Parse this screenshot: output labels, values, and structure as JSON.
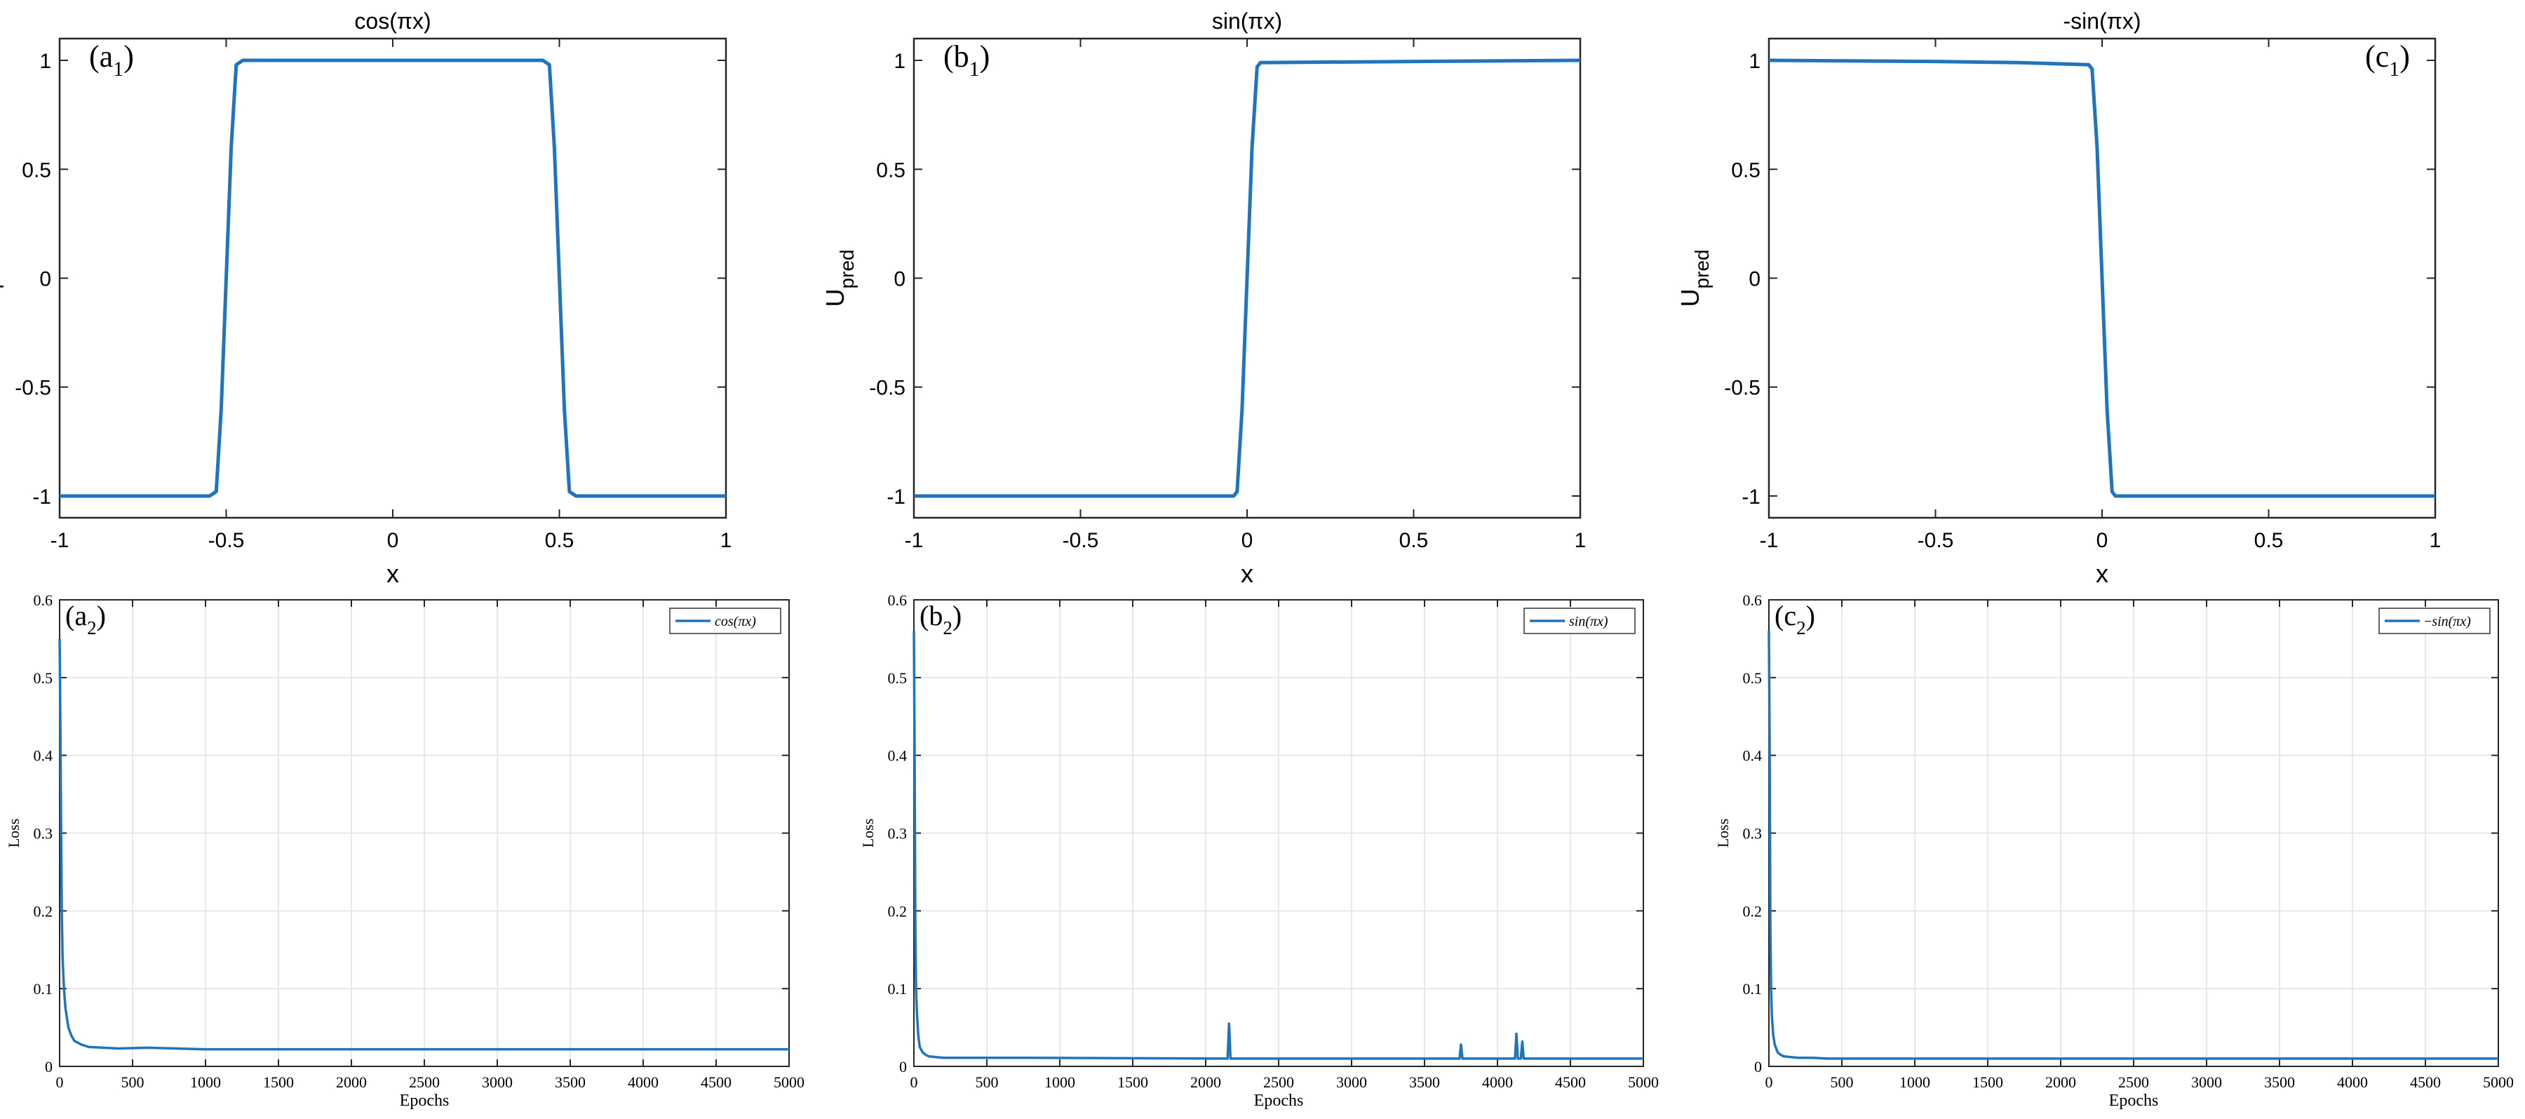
{
  "figure": {
    "colors": {
      "line": "#1f74bc",
      "axis": "#262626",
      "grid": "#e1e1e1",
      "legend_border": "#333333"
    }
  },
  "chart_data": [
    {
      "id": "a1",
      "type": "line",
      "title": "cos(πx)",
      "xlabel": "x",
      "ylabel": "U",
      "ylabel_sub": "pred",
      "panel_label": "(a",
      "panel_label_sub": "1",
      "panel_label_close": ")",
      "xlim": [
        -1,
        1
      ],
      "ylim": [
        -1.1,
        1.1
      ],
      "xticks": [
        -1,
        -0.5,
        0,
        0.5,
        1
      ],
      "yticks": [
        -1,
        -0.5,
        0,
        0.5,
        1
      ],
      "xtick_labels": [
        "-1",
        "-0.5",
        "0",
        "0.5",
        "1"
      ],
      "ytick_labels": [
        "-1",
        "-0.5",
        "0",
        "0.5",
        "1"
      ],
      "grid": false,
      "series": [
        {
          "x": [
            -1,
            -0.55,
            -0.53,
            -0.515,
            -0.5,
            -0.485,
            -0.47,
            -0.45,
            0.45,
            0.47,
            0.485,
            0.5,
            0.515,
            0.53,
            0.55,
            1
          ],
          "y": [
            -1,
            -1,
            -0.98,
            -0.6,
            0,
            0.6,
            0.98,
            1,
            1,
            0.98,
            0.6,
            0,
            -0.6,
            -0.98,
            -1,
            -1
          ]
        }
      ]
    },
    {
      "id": "b1",
      "type": "line",
      "title": "sin(πx)",
      "xlabel": "x",
      "ylabel": "U",
      "ylabel_sub": "pred",
      "panel_label": "(b",
      "panel_label_sub": "1",
      "panel_label_close": ")",
      "xlim": [
        -1,
        1
      ],
      "ylim": [
        -1.1,
        1.1
      ],
      "xticks": [
        -1,
        -0.5,
        0,
        0.5,
        1
      ],
      "yticks": [
        -1,
        -0.5,
        0,
        0.5,
        1
      ],
      "xtick_labels": [
        "-1",
        "-0.5",
        "0",
        "0.5",
        "1"
      ],
      "ytick_labels": [
        "-1",
        "-0.5",
        "0",
        "0.5",
        "1"
      ],
      "grid": false,
      "series": [
        {
          "x": [
            -1,
            -0.04,
            -0.03,
            -0.015,
            0,
            0.015,
            0.03,
            0.04,
            1
          ],
          "y": [
            -1,
            -1,
            -0.98,
            -0.6,
            0,
            0.6,
            0.97,
            0.99,
            1
          ]
        }
      ]
    },
    {
      "id": "c1",
      "type": "line",
      "title": "-sin(πx)",
      "xlabel": "x",
      "ylabel": "U",
      "ylabel_sub": "pred",
      "panel_label": "(c",
      "panel_label_sub": "1",
      "panel_label_close": ")",
      "xlim": [
        -1,
        1
      ],
      "ylim": [
        -1.1,
        1.1
      ],
      "xticks": [
        -1,
        -0.5,
        0,
        0.5,
        1
      ],
      "yticks": [
        -1,
        -0.5,
        0,
        0.5,
        1
      ],
      "xtick_labels": [
        "-1",
        "-0.5",
        "0",
        "0.5",
        "1"
      ],
      "ytick_labels": [
        "-1",
        "-0.5",
        "0",
        "0.5",
        "1"
      ],
      "grid": false,
      "series": [
        {
          "x": [
            -1,
            -0.5,
            -0.25,
            -0.04,
            -0.03,
            -0.015,
            0,
            0.015,
            0.03,
            0.04,
            1
          ],
          "y": [
            1,
            0.995,
            0.99,
            0.98,
            0.96,
            0.6,
            0,
            -0.6,
            -0.98,
            -1,
            -1
          ]
        }
      ]
    },
    {
      "id": "a2",
      "type": "line",
      "title": "",
      "xlabel": "Epochs",
      "ylabel": "Loss",
      "panel_label": "(a",
      "panel_label_sub": "2",
      "panel_label_close": ")",
      "xlim": [
        0,
        5000
      ],
      "ylim": [
        0,
        0.6
      ],
      "xticks": [
        0,
        500,
        1000,
        1500,
        2000,
        2500,
        3000,
        3500,
        4000,
        4500,
        5000
      ],
      "yticks": [
        0,
        0.1,
        0.2,
        0.3,
        0.4,
        0.5,
        0.6
      ],
      "xtick_labels": [
        "0",
        "500",
        "1000",
        "1500",
        "2000",
        "2500",
        "3000",
        "3500",
        "4000",
        "4500",
        "5000"
      ],
      "ytick_labels": [
        "0",
        "0.1",
        "0.2",
        "0.3",
        "0.4",
        "0.5",
        "0.6"
      ],
      "grid": true,
      "legend_placement": "top-right",
      "legend": [
        {
          "pre": "",
          "fn": "cos",
          "arg": "(πx)"
        }
      ],
      "series": [
        {
          "x": [
            0,
            5,
            10,
            15,
            20,
            30,
            40,
            60,
            80,
            100,
            150,
            200,
            300,
            400,
            600,
            800,
            1000,
            2000,
            3000,
            4000,
            5000
          ],
          "y": [
            0.55,
            0.45,
            0.3,
            0.2,
            0.14,
            0.1,
            0.075,
            0.05,
            0.04,
            0.033,
            0.028,
            0.025,
            0.024,
            0.023,
            0.024,
            0.023,
            0.022,
            0.022,
            0.022,
            0.022,
            0.022
          ]
        }
      ]
    },
    {
      "id": "b2",
      "type": "line",
      "title": "",
      "xlabel": "Epochs",
      "ylabel": "Loss",
      "panel_label": "(b",
      "panel_label_sub": "2",
      "panel_label_close": ")",
      "xlim": [
        0,
        5000
      ],
      "ylim": [
        0,
        0.6
      ],
      "xticks": [
        0,
        500,
        1000,
        1500,
        2000,
        2500,
        3000,
        3500,
        4000,
        4500,
        5000
      ],
      "yticks": [
        0,
        0.1,
        0.2,
        0.3,
        0.4,
        0.5,
        0.6
      ],
      "xtick_labels": [
        "0",
        "500",
        "1000",
        "1500",
        "2000",
        "2500",
        "3000",
        "3500",
        "4000",
        "4500",
        "5000"
      ],
      "ytick_labels": [
        "0",
        "0.1",
        "0.2",
        "0.3",
        "0.4",
        "0.5",
        "0.6"
      ],
      "grid": true,
      "legend_placement": "top-right",
      "legend": [
        {
          "pre": "",
          "fn": "sin",
          "arg": "(πx)"
        }
      ],
      "series": [
        {
          "x": [
            0,
            5,
            10,
            15,
            20,
            30,
            40,
            60,
            80,
            100,
            150,
            200,
            400,
            800,
            2150,
            2160,
            2170,
            3740,
            3750,
            3760,
            4120,
            4130,
            4140,
            4160,
            4170,
            4180,
            5000
          ],
          "y": [
            0.56,
            0.4,
            0.17,
            0.1,
            0.07,
            0.04,
            0.025,
            0.018,
            0.015,
            0.013,
            0.012,
            0.011,
            0.011,
            0.011,
            0.01,
            0.055,
            0.01,
            0.01,
            0.028,
            0.01,
            0.01,
            0.042,
            0.01,
            0.01,
            0.032,
            0.01,
            0.01
          ]
        }
      ]
    },
    {
      "id": "c2",
      "type": "line",
      "title": "",
      "xlabel": "Epochs",
      "ylabel": "Loss",
      "panel_label": "(c",
      "panel_label_sub": "2",
      "panel_label_close": ")",
      "xlim": [
        0,
        5000
      ],
      "ylim": [
        0,
        0.6
      ],
      "xticks": [
        0,
        500,
        1000,
        1500,
        2000,
        2500,
        3000,
        3500,
        4000,
        4500,
        5000
      ],
      "yticks": [
        0,
        0.1,
        0.2,
        0.3,
        0.4,
        0.5,
        0.6
      ],
      "xtick_labels": [
        "0",
        "500",
        "1000",
        "1500",
        "2000",
        "2500",
        "3000",
        "3500",
        "4000",
        "4500",
        "5000"
      ],
      "ytick_labels": [
        "0",
        "0.1",
        "0.2",
        "0.3",
        "0.4",
        "0.5",
        "0.6"
      ],
      "grid": true,
      "legend_placement": "top-right",
      "legend": [
        {
          "pre": "−",
          "fn": "sin",
          "arg": "(πx)"
        }
      ],
      "series": [
        {
          "x": [
            0,
            5,
            10,
            15,
            20,
            30,
            40,
            60,
            80,
            100,
            150,
            200,
            300,
            400,
            600,
            1000,
            2000,
            3000,
            4000,
            5000
          ],
          "y": [
            0.56,
            0.42,
            0.18,
            0.1,
            0.065,
            0.04,
            0.028,
            0.018,
            0.015,
            0.013,
            0.012,
            0.011,
            0.011,
            0.01,
            0.01,
            0.01,
            0.01,
            0.01,
            0.01,
            0.01
          ]
        }
      ]
    }
  ]
}
